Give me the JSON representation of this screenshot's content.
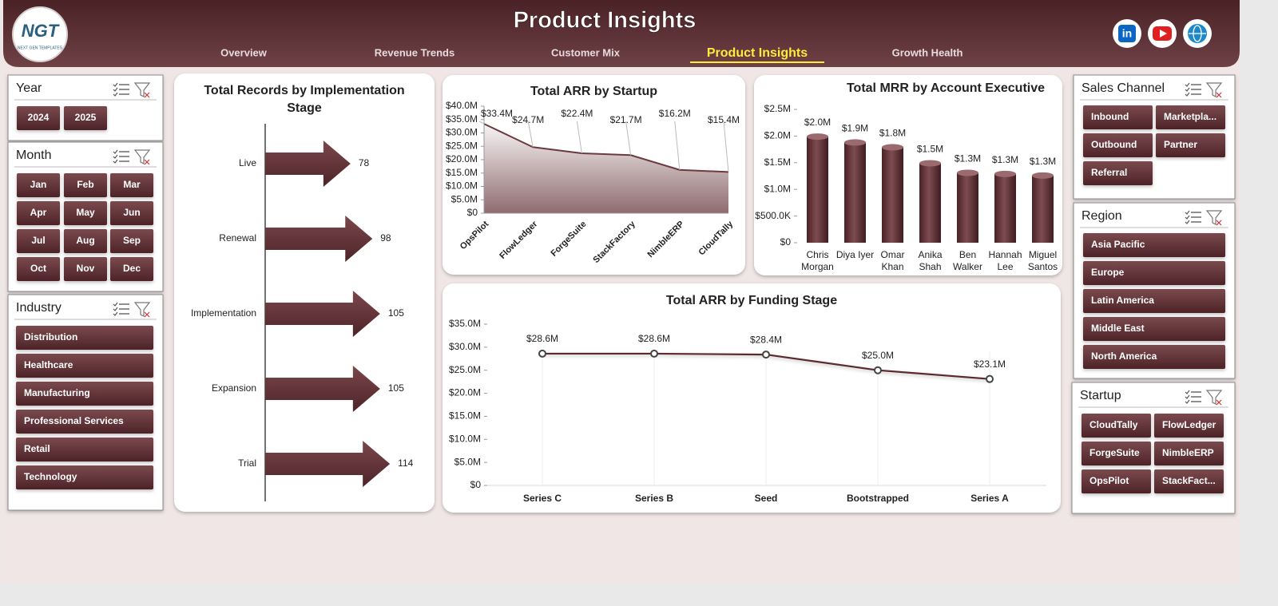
{
  "header": {
    "title": "Product Insights",
    "logo": "NGT",
    "logo_sub": "NEXT GEN TEMPLATES",
    "linkedin": "in",
    "nav": [
      "Overview",
      "Revenue Trends",
      "Customer Mix",
      "Product Insights",
      "Growth Health"
    ],
    "nav_active": 3
  },
  "slicers": [
    {
      "title": "Year",
      "items": [
        "2024",
        "2025"
      ]
    },
    {
      "title": "Month",
      "items": [
        "Jan",
        "Feb",
        "Mar",
        "Apr",
        "May",
        "Jun",
        "Jul",
        "Aug",
        "Sep",
        "Oct",
        "Nov",
        "Dec"
      ]
    },
    {
      "title": "Industry",
      "items": [
        "Distribution",
        "Healthcare",
        "Manufacturing",
        "Professional Services",
        "Retail",
        "Technology"
      ]
    },
    {
      "title": "Sales Channel",
      "items": [
        "Inbound",
        "Marketpla...",
        "Outbound",
        "Partner",
        "Referral"
      ]
    },
    {
      "title": "Region",
      "items": [
        "Asia Pacific",
        "Europe",
        "Latin America",
        "Middle East",
        "North America"
      ]
    },
    {
      "title": "Startup",
      "items": [
        "CloudTally",
        "FlowLedger",
        "ForgeSuite",
        "NimbleERP",
        "OpsPilot",
        "StackFact..."
      ]
    }
  ],
  "chart_data": [
    {
      "type": "arrow",
      "title": "Total Records by Implementation Stage",
      "categories": [
        "Live",
        "Renewal",
        "Implementation",
        "Expansion",
        "Trial"
      ],
      "values": [
        78,
        98,
        105,
        105,
        114
      ],
      "color": "#5e2c31"
    },
    {
      "type": "area",
      "title": "Total ARR by Startup",
      "categories": [
        "OpsPilot",
        "FlowLedger",
        "ForgeSuite",
        "StackFactory",
        "NimbleERP",
        "CloudTally"
      ],
      "values": [
        33400000,
        24700000,
        22400000,
        21700000,
        16200000,
        15400000
      ],
      "value_labels": [
        "$33.4M",
        "$24.7M",
        "$22.4M",
        "$21.7M",
        "$16.2M",
        "$15.4M"
      ],
      "ylim": [
        0,
        40000000
      ],
      "yticks": [
        {
          "value": 0,
          "label": "$0"
        },
        {
          "value": 5000000,
          "label": "$5.0M"
        },
        {
          "value": 10000000,
          "label": "$10.0M"
        },
        {
          "value": 15000000,
          "label": "$15.0M"
        },
        {
          "value": 20000000,
          "label": "$20.0M"
        },
        {
          "value": 25000000,
          "label": "$25.0M"
        },
        {
          "value": 30000000,
          "label": "$30.0M"
        },
        {
          "value": 35000000,
          "label": "$35.0M"
        },
        {
          "value": 40000000,
          "label": "$40.0M"
        }
      ],
      "color": "#6a3a3f"
    },
    {
      "type": "column",
      "title": "Total MRR by Account Executive",
      "categories": [
        "Chris Morgan",
        "Diya Iyer",
        "Omar Khan",
        "Anika Shah",
        "Ben Walker",
        "Hannah Lee",
        "Miguel Santos"
      ],
      "values": [
        1990000,
        1880000,
        1790000,
        1490000,
        1310000,
        1290000,
        1260000
      ],
      "value_labels": [
        "$2.0M",
        "$1.9M",
        "$1.8M",
        "$1.5M",
        "$1.3M",
        "$1.3M",
        "$1.3M"
      ],
      "ylim": [
        0,
        2500000
      ],
      "yticks": [
        {
          "value": 0,
          "label": "$0"
        },
        {
          "value": 500000,
          "label": "$500.0K"
        },
        {
          "value": 1000000,
          "label": "$1.0M"
        },
        {
          "value": 1500000,
          "label": "$1.5M"
        },
        {
          "value": 2000000,
          "label": "$2.0M"
        },
        {
          "value": 2500000,
          "label": "$2.5M"
        }
      ],
      "color": "#5e2c31"
    },
    {
      "type": "line",
      "title": "Total ARR by Funding Stage",
      "categories": [
        "Series C",
        "Series B",
        "Seed",
        "Bootstrapped",
        "Series A"
      ],
      "values": [
        28600000,
        28600000,
        28400000,
        25000000,
        23100000
      ],
      "value_labels": [
        "$28.6M",
        "$28.6M",
        "$28.4M",
        "$25.0M",
        "$23.1M"
      ],
      "ylim": [
        0,
        35000000
      ],
      "yticks": [
        {
          "value": 0,
          "label": "$0"
        },
        {
          "value": 5000000,
          "label": "$5.0M"
        },
        {
          "value": 10000000,
          "label": "$10.0M"
        },
        {
          "value": 15000000,
          "label": "$15.0M"
        },
        {
          "value": 20000000,
          "label": "$20.0M"
        },
        {
          "value": 25000000,
          "label": "$25.0M"
        },
        {
          "value": 30000000,
          "label": "$30.0M"
        },
        {
          "value": 35000000,
          "label": "$35.0M"
        }
      ],
      "color": "#5a2a2f"
    }
  ]
}
